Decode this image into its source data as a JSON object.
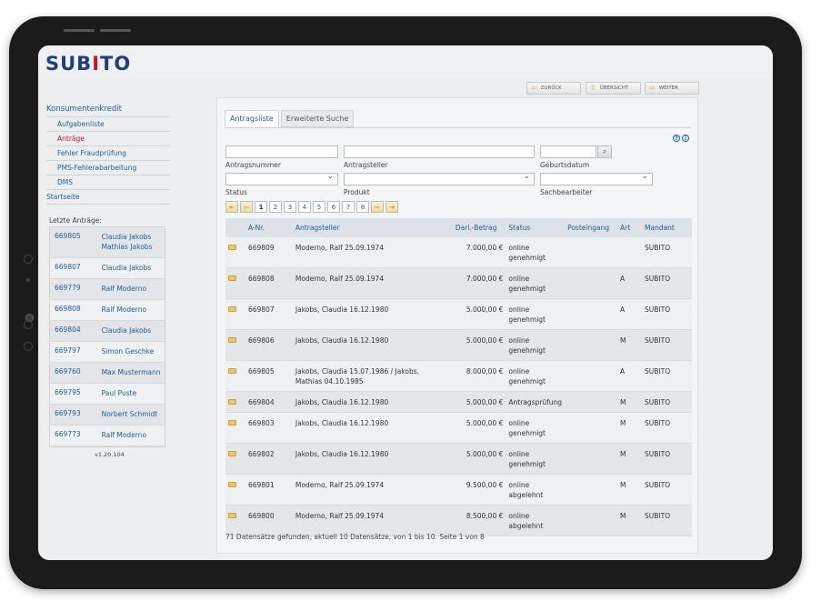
{
  "app": {
    "logo_pre": "SUB",
    "logo_accent": "I",
    "logo_post": "TO"
  },
  "colors": {
    "brand_blue": "#1d3f7a",
    "brand_red": "#c8102e",
    "link": "#1b5e9b"
  },
  "toolbar": {
    "back_label": "ZURÜCK",
    "overview_label": "ÜBERSICHT",
    "next_label": "WEITER"
  },
  "nav": {
    "title": "Konsumentenkredit",
    "items": [
      {
        "label": "Aufgabenliste"
      },
      {
        "label": "Anträge"
      },
      {
        "label": "Fehler Fraudprüfung"
      },
      {
        "label": "PMS-Fehlerabarbeitung"
      },
      {
        "label": "DMS"
      }
    ],
    "start": "Startseite"
  },
  "recent": {
    "label": "Letzte Anträge:",
    "rows": [
      {
        "id": "669805",
        "name": "Claudia Jakobs Mathias Jakobs"
      },
      {
        "id": "669807",
        "name": "Claudia Jakobs"
      },
      {
        "id": "669779",
        "name": "Ralf Moderno"
      },
      {
        "id": "669808",
        "name": "Ralf Moderno"
      },
      {
        "id": "669804",
        "name": "Claudia Jakobs"
      },
      {
        "id": "669797",
        "name": "Simon Geschke"
      },
      {
        "id": "669760",
        "name": "Max Mustermann"
      },
      {
        "id": "669795",
        "name": "Paul Puste"
      },
      {
        "id": "669793",
        "name": "Norbert Schmidt"
      },
      {
        "id": "669773",
        "name": "Ralf Moderno"
      }
    ]
  },
  "version": "v1.20.104",
  "tabs": {
    "list": "Antragsliste",
    "advanced": "Erweiterte Suche"
  },
  "filters": {
    "antragsnummer": "Antragsnummer",
    "antragsteller": "Antragsteller",
    "geburtsdatum": "Geburtsdatum",
    "status": "Status",
    "produkt": "Produkt",
    "sachbearbeiter": "Sachbearbeiter"
  },
  "pager": {
    "pages": [
      "1",
      "2",
      "3",
      "4",
      "5",
      "6",
      "7",
      "8"
    ],
    "current": "1"
  },
  "table": {
    "headers": [
      "A-Nr.",
      "Antragsteller",
      "Darl.-Betrag",
      "Status",
      "Posteingang",
      "Art",
      "Mandant"
    ],
    "rows": [
      {
        "nr": "669809",
        "name": "Moderno, Ralf 25.09.1974",
        "amount": "7.000,00 €",
        "status": "online genehmigt",
        "post": "",
        "art": "",
        "mandant": "SUBITO"
      },
      {
        "nr": "669808",
        "name": "Moderno, Ralf 25.09.1974",
        "amount": "7.000,00 €",
        "status": "online genehmigt",
        "post": "",
        "art": "A",
        "mandant": "SUBITO"
      },
      {
        "nr": "669807",
        "name": "Jakobs, Claudia 16.12.1980",
        "amount": "5.000,00 €",
        "status": "online genehmigt",
        "post": "",
        "art": "A",
        "mandant": "SUBITO"
      },
      {
        "nr": "669806",
        "name": "Jakobs, Claudia 16.12.1980",
        "amount": "5.000,00 €",
        "status": "online genehmigt",
        "post": "",
        "art": "M",
        "mandant": "SUBITO"
      },
      {
        "nr": "669805",
        "name": "Jakobs, Claudia 15.07.1986 / Jakobs, Mathias 04.10.1985",
        "amount": "8.000,00 €",
        "status": "online genehmigt",
        "post": "",
        "art": "A",
        "mandant": "SUBITO"
      },
      {
        "nr": "669804",
        "name": "Jakobs, Claudia 16.12.1980",
        "amount": "5.000,00 €",
        "status": "Antragsprüfung",
        "post": "",
        "art": "M",
        "mandant": "SUBITO"
      },
      {
        "nr": "669803",
        "name": "Jakobs, Claudia 16.12.1980",
        "amount": "5.000,00 €",
        "status": "online genehmigt",
        "post": "",
        "art": "M",
        "mandant": "SUBITO"
      },
      {
        "nr": "669802",
        "name": "Jakobs, Claudia 16.12.1980",
        "amount": "5.000,00 €",
        "status": "online genehmigt",
        "post": "",
        "art": "M",
        "mandant": "SUBITO"
      },
      {
        "nr": "669801",
        "name": "Moderno, Ralf 25.09.1974",
        "amount": "9.500,00 €",
        "status": "online abgelehnt",
        "post": "",
        "art": "M",
        "mandant": "SUBITO"
      },
      {
        "nr": "669800",
        "name": "Moderno, Ralf 25.09.1974",
        "amount": "8.500,00 €",
        "status": "online abgelehnt",
        "post": "",
        "art": "M",
        "mandant": "SUBITO"
      }
    ]
  },
  "footer": "71 Datensätze gefunden, aktuell 10 Datensätze, von 1 bis 10. Seite 1 von 8"
}
